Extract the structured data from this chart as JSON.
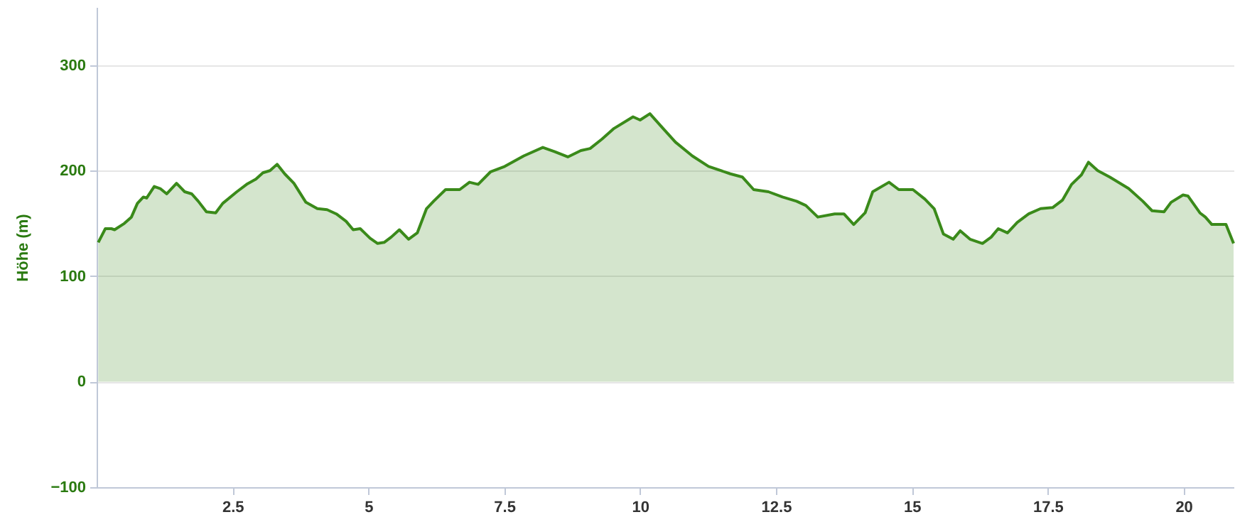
{
  "chart_data": {
    "type": "area",
    "ylabel": "Höhe (m)",
    "xlim": [
      0,
      20.92
    ],
    "ylim": [
      -100,
      355
    ],
    "xticks": [
      2.5,
      5,
      7.5,
      10,
      12.5,
      15,
      17.5,
      20
    ],
    "yticks": [
      -100,
      0,
      100,
      200,
      300
    ],
    "grid": "y",
    "x": [
      0.03,
      0.16,
      0.27,
      0.33,
      0.51,
      0.64,
      0.75,
      0.86,
      0.92,
      1.06,
      1.17,
      1.29,
      1.47,
      1.62,
      1.75,
      1.87,
      2.02,
      2.19,
      2.32,
      2.58,
      2.76,
      2.93,
      3.06,
      3.19,
      3.32,
      3.46,
      3.63,
      3.85,
      4.06,
      4.24,
      4.41,
      4.59,
      4.72,
      4.85,
      5.03,
      5.17,
      5.29,
      5.42,
      5.57,
      5.74,
      5.9,
      6.07,
      6.2,
      6.42,
      6.68,
      6.86,
      7.02,
      7.25,
      7.51,
      7.86,
      8.21,
      8.43,
      8.67,
      8.91,
      9.08,
      9.3,
      9.52,
      9.87,
      10.0,
      10.18,
      10.44,
      10.65,
      10.96,
      11.26,
      11.66,
      11.88,
      12.09,
      12.36,
      12.62,
      12.88,
      13.05,
      13.27,
      13.58,
      13.75,
      13.93,
      14.14,
      14.28,
      14.58,
      14.76,
      15.02,
      15.24,
      15.41,
      15.58,
      15.76,
      15.89,
      16.07,
      16.3,
      16.46,
      16.59,
      16.76,
      16.94,
      17.15,
      17.37,
      17.59,
      17.77,
      17.94,
      18.12,
      18.25,
      18.42,
      18.64,
      18.99,
      19.25,
      19.42,
      19.64,
      19.77,
      19.99,
      20.08,
      20.3,
      20.4,
      20.52,
      20.78,
      20.92
    ],
    "series": [
      {
        "color": "#3a8a1a",
        "values": [
          132,
          145,
          145,
          144,
          150,
          156,
          169,
          175,
          174,
          185,
          183,
          178,
          188,
          180,
          178,
          171,
          161,
          160,
          169,
          180,
          187,
          192,
          198,
          200,
          206,
          197,
          188,
          170,
          164,
          163,
          159,
          152,
          144,
          145,
          136,
          131,
          132,
          137,
          144,
          135,
          141,
          164,
          171,
          182,
          182,
          189,
          187,
          199,
          204,
          214,
          222,
          218,
          213,
          219,
          221,
          230,
          240,
          251,
          248,
          254,
          239,
          227,
          214,
          204,
          197,
          194,
          182,
          180,
          175,
          171,
          167,
          156,
          159,
          159,
          149,
          160,
          180,
          189,
          182,
          182,
          173,
          164,
          140,
          135,
          143,
          135,
          131,
          137,
          145,
          141,
          151,
          159,
          164,
          165,
          172,
          187,
          196,
          208,
          200,
          194,
          183,
          171,
          162,
          161,
          170,
          177,
          176,
          160,
          156,
          149,
          149,
          131
        ]
      }
    ]
  }
}
